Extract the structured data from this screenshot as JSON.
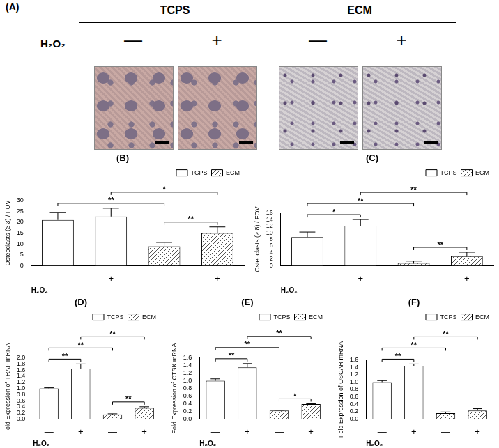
{
  "figure_panel": {
    "label": "(A)",
    "treatment_label": "H₂O₂",
    "groups": [
      {
        "name": "TCPS",
        "columns": [
          "—",
          "+"
        ]
      },
      {
        "name": "ECM",
        "columns": [
          "—",
          "+"
        ]
      }
    ]
  },
  "chart_data": [
    {
      "type": "bar",
      "title": "(B)",
      "ylabel": "Osteoclasts (≥ 3) / FOV",
      "xlabel": "H₂O₂",
      "categories": [
        "—",
        "+",
        "—",
        "+"
      ],
      "series": [
        {
          "name": "TCPS",
          "color": "#ffffff",
          "values": [
            21,
            22.6,
            null,
            null
          ],
          "errors": [
            3.5,
            3.8,
            null,
            null
          ]
        },
        {
          "name": "ECM",
          "color": "#555555",
          "values": [
            null,
            null,
            8.9,
            15
          ],
          "errors": [
            null,
            null,
            1.8,
            2.8
          ]
        }
      ],
      "ylim": [
        0,
        30
      ],
      "yticks": [
        0,
        5,
        10,
        15,
        20,
        25,
        30
      ],
      "grid": false,
      "legend": "top right",
      "annotations": [
        {
          "from": 0,
          "to": 2,
          "label": "**"
        },
        {
          "from": 1,
          "to": 3,
          "label": "*"
        },
        {
          "from": 2,
          "to": 3,
          "label": "**"
        }
      ]
    },
    {
      "type": "bar",
      "title": "(C)",
      "ylabel": "Osteoclasts (≥ 8) / FOV",
      "xlabel": "H₂O₂",
      "categories": [
        "—",
        "+",
        "—",
        "+"
      ],
      "series": [
        {
          "name": "TCPS",
          "color": "#ffffff",
          "values": [
            8.7,
            12.1,
            null,
            null
          ],
          "errors": [
            1.5,
            1.9,
            null,
            null
          ]
        },
        {
          "name": "ECM",
          "color": "#555555",
          "values": [
            null,
            null,
            0.8,
            2.9
          ],
          "errors": [
            null,
            null,
            0.6,
            1.2
          ]
        }
      ],
      "ylim": [
        0,
        16
      ],
      "yticks": [
        0,
        2,
        4,
        6,
        8,
        10,
        12,
        14,
        16
      ],
      "grid": false,
      "legend": "top right",
      "annotations": [
        {
          "from": 0,
          "to": 2,
          "label": "**"
        },
        {
          "from": 0,
          "to": 1,
          "label": "*"
        },
        {
          "from": 1,
          "to": 3,
          "label": "**"
        },
        {
          "from": 2,
          "to": 3,
          "label": "**"
        }
      ]
    },
    {
      "type": "bar",
      "title": "(D)",
      "ylabel": "Fold Expression of TRAP mRNA",
      "xlabel": "H₂O₂",
      "categories": [
        "—",
        "+",
        "—",
        "+"
      ],
      "series": [
        {
          "name": "TCPS",
          "color": "#ffffff",
          "values": [
            1.0,
            1.65,
            null,
            null
          ],
          "errors": [
            0.02,
            0.15,
            null,
            null
          ]
        },
        {
          "name": "ECM",
          "color": "#555555",
          "values": [
            null,
            null,
            0.15,
            0.36
          ],
          "errors": [
            null,
            null,
            0.02,
            0.04
          ]
        }
      ],
      "ylim": [
        0,
        2.0
      ],
      "yticks": [
        {
          "value": 0,
          "label": "0.0"
        },
        0.2,
        0.4,
        0.6,
        0.8,
        {
          "value": 1,
          "label": "1.0"
        },
        1.2,
        1.4,
        1.6,
        1.8,
        {
          "value": 2,
          "label": "2.0"
        }
      ],
      "grid": false,
      "legend": "top right",
      "annotations": [
        {
          "from": 0,
          "to": 2,
          "label": "**"
        },
        {
          "from": 0,
          "to": 1,
          "label": "**"
        },
        {
          "from": 1,
          "to": 3,
          "label": "**"
        },
        {
          "from": 2,
          "to": 3,
          "label": "**"
        }
      ]
    },
    {
      "type": "bar",
      "title": "(E)",
      "ylabel": "Fold Expression of CTSK mRNA",
      "xlabel": "H₂O₂",
      "categories": [
        "—",
        "+",
        "—",
        "+"
      ],
      "series": [
        {
          "name": "TCPS",
          "color": "#ffffff",
          "values": [
            1.0,
            1.35,
            null,
            null
          ],
          "errors": [
            0.05,
            0.1,
            null,
            null
          ]
        },
        {
          "name": "ECM",
          "color": "#555555",
          "values": [
            null,
            null,
            0.22,
            0.39
          ],
          "errors": [
            null,
            null,
            0.01,
            0.01
          ]
        }
      ],
      "ylim": [
        0,
        1.6
      ],
      "yticks": [
        {
          "value": 0,
          "label": "0.0"
        },
        0.2,
        0.4,
        0.6,
        0.8,
        {
          "value": 1,
          "label": "1.0"
        },
        1.2,
        1.4,
        1.6
      ],
      "grid": false,
      "legend": "top right",
      "annotations": [
        {
          "from": 0,
          "to": 2,
          "label": "**"
        },
        {
          "from": 0,
          "to": 1,
          "label": "**"
        },
        {
          "from": 1,
          "to": 3,
          "label": "**"
        },
        {
          "from": 2,
          "to": 3,
          "label": "*"
        }
      ]
    },
    {
      "type": "bar",
      "title": "(F)",
      "ylabel": "Fold Expression of OSCAR mRNA",
      "xlabel": "H₂O₂",
      "categories": [
        "—",
        "+",
        "—",
        "+"
      ],
      "series": [
        {
          "name": "TCPS",
          "color": "#ffffff",
          "values": [
            1.0,
            1.44,
            null,
            null
          ],
          "errors": [
            0.04,
            0.05,
            null,
            null
          ]
        },
        {
          "name": "ECM",
          "color": "#555555",
          "values": [
            null,
            null,
            0.16,
            0.23
          ],
          "errors": [
            null,
            null,
            0.03,
            0.05
          ]
        }
      ],
      "ylim": [
        0,
        1.6
      ],
      "yticks": [
        {
          "value": 0,
          "label": "0.0"
        },
        0.2,
        0.4,
        0.6,
        0.8,
        {
          "value": 1,
          "label": "1.0"
        },
        1.2,
        1.4,
        1.6
      ],
      "grid": false,
      "legend": "top right",
      "annotations": [
        {
          "from": 0,
          "to": 2,
          "label": "**"
        },
        {
          "from": 0,
          "to": 1,
          "label": "**"
        },
        {
          "from": 1,
          "to": 3,
          "label": "**"
        }
      ]
    }
  ]
}
